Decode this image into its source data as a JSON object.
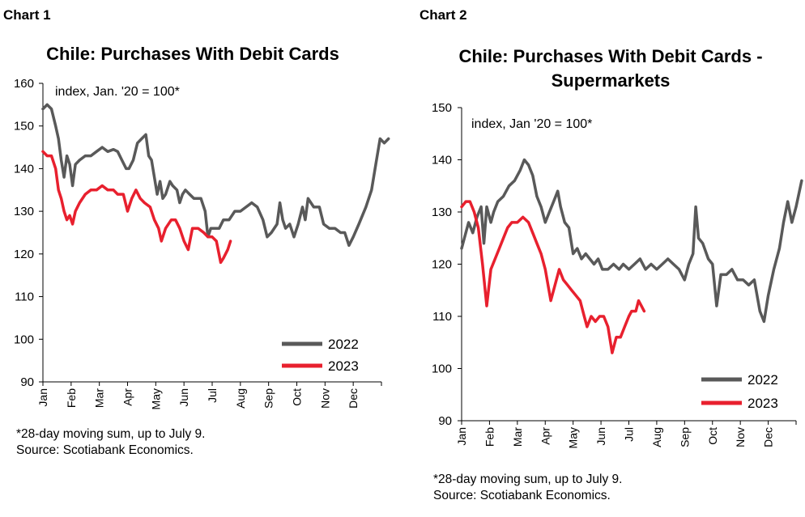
{
  "chart_data": [
    {
      "type": "line",
      "label": "Chart 1",
      "title": "Chile: Purchases With Debit Cards",
      "title_lines": [
        "Chile: Purchases With Debit Cards"
      ],
      "annotation": "index,  Jan. '20 = 100*",
      "ylim": [
        90,
        160
      ],
      "yticks": [
        90,
        100,
        110,
        120,
        130,
        140,
        150,
        160
      ],
      "xlim": [
        0,
        12
      ],
      "xticks": [
        "Jan",
        "Feb",
        "Mar",
        "Apr",
        "May",
        "Jun",
        "Jul",
        "Aug",
        "Sep",
        "Oct",
        "Nov",
        "Dec"
      ],
      "legend": "bottom-right",
      "footnote": [
        "*28-day moving sum, up to July 9.",
        "Source: Scotiabank Economics."
      ],
      "series": [
        {
          "name": "2022",
          "color": "#595959",
          "points": [
            [
              0,
              154
            ],
            [
              0.15,
              155
            ],
            [
              0.3,
              154
            ],
            [
              0.45,
              150
            ],
            [
              0.55,
              147
            ],
            [
              0.65,
              142
            ],
            [
              0.75,
              138
            ],
            [
              0.85,
              143
            ],
            [
              0.95,
              141
            ],
            [
              1.05,
              136
            ],
            [
              1.15,
              141
            ],
            [
              1.3,
              142
            ],
            [
              1.5,
              143
            ],
            [
              1.7,
              143
            ],
            [
              1.9,
              144
            ],
            [
              2.1,
              145
            ],
            [
              2.3,
              144
            ],
            [
              2.5,
              144.5
            ],
            [
              2.65,
              144
            ],
            [
              2.8,
              142
            ],
            [
              2.95,
              140
            ],
            [
              3.05,
              140
            ],
            [
              3.2,
              142
            ],
            [
              3.35,
              146
            ],
            [
              3.5,
              147
            ],
            [
              3.65,
              148
            ],
            [
              3.75,
              143
            ],
            [
              3.85,
              142
            ],
            [
              3.95,
              138
            ],
            [
              4.05,
              134
            ],
            [
              4.15,
              137
            ],
            [
              4.25,
              133
            ],
            [
              4.35,
              134
            ],
            [
              4.5,
              137
            ],
            [
              4.6,
              136
            ],
            [
              4.75,
              135
            ],
            [
              4.85,
              132
            ],
            [
              4.95,
              134
            ],
            [
              5.05,
              135
            ],
            [
              5.2,
              134
            ],
            [
              5.35,
              133
            ],
            [
              5.5,
              133
            ],
            [
              5.6,
              133
            ],
            [
              5.75,
              130
            ],
            [
              5.85,
              124
            ],
            [
              5.95,
              126
            ],
            [
              6.1,
              126
            ],
            [
              6.25,
              126
            ],
            [
              6.4,
              128
            ],
            [
              6.6,
              128
            ],
            [
              6.8,
              130
            ],
            [
              7.0,
              130
            ],
            [
              7.2,
              131
            ],
            [
              7.4,
              132
            ],
            [
              7.6,
              131
            ],
            [
              7.8,
              128
            ],
            [
              7.95,
              124
            ],
            [
              8.1,
              125
            ],
            [
              8.3,
              127
            ],
            [
              8.4,
              132
            ],
            [
              8.5,
              128
            ],
            [
              8.6,
              126
            ],
            [
              8.75,
              127
            ],
            [
              8.9,
              124
            ],
            [
              9.05,
              127
            ],
            [
              9.2,
              131
            ],
            [
              9.3,
              128
            ],
            [
              9.4,
              133
            ],
            [
              9.6,
              131
            ],
            [
              9.8,
              131
            ],
            [
              9.95,
              127
            ],
            [
              10.15,
              126
            ],
            [
              10.35,
              126
            ],
            [
              10.55,
              125
            ],
            [
              10.7,
              125
            ],
            [
              10.85,
              122
            ],
            [
              11.0,
              124
            ],
            [
              11.2,
              127
            ],
            [
              11.45,
              131
            ],
            [
              11.65,
              135
            ],
            [
              11.8,
              141
            ],
            [
              11.95,
              147
            ],
            [
              12.1,
              146
            ],
            [
              12.25,
              147
            ]
          ]
        },
        {
          "name": "2023",
          "color": "#e8202e",
          "points": [
            [
              0,
              144
            ],
            [
              0.15,
              143
            ],
            [
              0.3,
              143
            ],
            [
              0.45,
              140
            ],
            [
              0.55,
              135
            ],
            [
              0.65,
              133
            ],
            [
              0.75,
              130
            ],
            [
              0.85,
              128
            ],
            [
              0.95,
              129
            ],
            [
              1.05,
              127
            ],
            [
              1.15,
              130
            ],
            [
              1.3,
              132
            ],
            [
              1.5,
              134
            ],
            [
              1.7,
              135
            ],
            [
              1.9,
              135
            ],
            [
              2.1,
              136
            ],
            [
              2.3,
              135
            ],
            [
              2.5,
              135
            ],
            [
              2.65,
              134
            ],
            [
              2.85,
              134
            ],
            [
              3.0,
              130
            ],
            [
              3.15,
              133
            ],
            [
              3.3,
              135
            ],
            [
              3.45,
              133
            ],
            [
              3.6,
              132
            ],
            [
              3.8,
              131
            ],
            [
              3.95,
              128
            ],
            [
              4.1,
              126
            ],
            [
              4.2,
              123
            ],
            [
              4.35,
              126
            ],
            [
              4.55,
              128
            ],
            [
              4.7,
              128
            ],
            [
              4.85,
              126
            ],
            [
              5.0,
              123
            ],
            [
              5.15,
              121
            ],
            [
              5.3,
              126
            ],
            [
              5.5,
              126
            ],
            [
              5.7,
              125
            ],
            [
              5.85,
              124
            ],
            [
              6.0,
              124
            ],
            [
              6.15,
              123
            ],
            [
              6.3,
              118
            ],
            [
              6.4,
              119
            ],
            [
              6.55,
              121
            ],
            [
              6.65,
              123
            ]
          ]
        }
      ]
    },
    {
      "type": "line",
      "label": "Chart 2",
      "title": "Chile: Purchases With Debit Cards - Supermarkets",
      "title_lines": [
        "Chile: Purchases With Debit Cards -",
        "Supermarkets"
      ],
      "annotation": "index, Jan '20 = 100*",
      "ylim": [
        90,
        150
      ],
      "yticks": [
        90,
        100,
        110,
        120,
        130,
        140,
        150
      ],
      "xlim": [
        0,
        12
      ],
      "xticks": [
        "Jan",
        "Feb",
        "Mar",
        "Apr",
        "May",
        "Jun",
        "Jul",
        "Aug",
        "Sep",
        "Oct",
        "Nov",
        "Dec"
      ],
      "legend": "bottom-right",
      "footnote": [
        "*28-day moving sum, up to July 9.",
        "Source: Scotiabank Economics."
      ],
      "series": [
        {
          "name": "2022",
          "color": "#595959",
          "points": [
            [
              0,
              123
            ],
            [
              0.1,
              125
            ],
            [
              0.25,
              128
            ],
            [
              0.4,
              126
            ],
            [
              0.55,
              129
            ],
            [
              0.7,
              131
            ],
            [
              0.8,
              124
            ],
            [
              0.9,
              131
            ],
            [
              1.05,
              128
            ],
            [
              1.15,
              130
            ],
            [
              1.3,
              132
            ],
            [
              1.5,
              133
            ],
            [
              1.7,
              135
            ],
            [
              1.9,
              136
            ],
            [
              2.1,
              138
            ],
            [
              2.25,
              140
            ],
            [
              2.4,
              139
            ],
            [
              2.55,
              137
            ],
            [
              2.7,
              133
            ],
            [
              2.85,
              131
            ],
            [
              3.0,
              128
            ],
            [
              3.15,
              130
            ],
            [
              3.3,
              132
            ],
            [
              3.45,
              134
            ],
            [
              3.55,
              131
            ],
            [
              3.7,
              128
            ],
            [
              3.85,
              127
            ],
            [
              4.0,
              122
            ],
            [
              4.15,
              123
            ],
            [
              4.3,
              121
            ],
            [
              4.45,
              122
            ],
            [
              4.6,
              121
            ],
            [
              4.75,
              120
            ],
            [
              4.9,
              121
            ],
            [
              5.05,
              119
            ],
            [
              5.25,
              119
            ],
            [
              5.45,
              120
            ],
            [
              5.65,
              119
            ],
            [
              5.8,
              120
            ],
            [
              6.0,
              119
            ],
            [
              6.2,
              120
            ],
            [
              6.4,
              121
            ],
            [
              6.6,
              119
            ],
            [
              6.8,
              120
            ],
            [
              7.0,
              119
            ],
            [
              7.2,
              120
            ],
            [
              7.4,
              121
            ],
            [
              7.6,
              120
            ],
            [
              7.8,
              119
            ],
            [
              8.0,
              117
            ],
            [
              8.15,
              120
            ],
            [
              8.3,
              122
            ],
            [
              8.4,
              131
            ],
            [
              8.5,
              125
            ],
            [
              8.65,
              124
            ],
            [
              8.85,
              121
            ],
            [
              9.0,
              120
            ],
            [
              9.15,
              112
            ],
            [
              9.3,
              118
            ],
            [
              9.5,
              118
            ],
            [
              9.7,
              119
            ],
            [
              9.9,
              117
            ],
            [
              10.1,
              117
            ],
            [
              10.3,
              116
            ],
            [
              10.5,
              117
            ],
            [
              10.7,
              111
            ],
            [
              10.85,
              109
            ],
            [
              11.0,
              114
            ],
            [
              11.2,
              119
            ],
            [
              11.4,
              123
            ],
            [
              11.55,
              128
            ],
            [
              11.7,
              132
            ],
            [
              11.85,
              128
            ],
            [
              12.0,
              131
            ],
            [
              12.2,
              136
            ]
          ]
        },
        {
          "name": "2023",
          "color": "#e8202e",
          "points": [
            [
              0,
              131
            ],
            [
              0.15,
              132
            ],
            [
              0.3,
              132
            ],
            [
              0.45,
              130
            ],
            [
              0.6,
              127
            ],
            [
              0.75,
              120
            ],
            [
              0.9,
              112
            ],
            [
              1.05,
              119
            ],
            [
              1.2,
              121
            ],
            [
              1.35,
              123
            ],
            [
              1.5,
              125
            ],
            [
              1.65,
              127
            ],
            [
              1.8,
              128
            ],
            [
              2.0,
              128
            ],
            [
              2.2,
              129
            ],
            [
              2.4,
              128
            ],
            [
              2.55,
              126
            ],
            [
              2.7,
              124
            ],
            [
              2.85,
              122
            ],
            [
              3.0,
              119
            ],
            [
              3.1,
              116
            ],
            [
              3.2,
              113
            ],
            [
              3.35,
              116
            ],
            [
              3.5,
              119
            ],
            [
              3.65,
              117
            ],
            [
              3.8,
              116
            ],
            [
              3.95,
              115
            ],
            [
              4.1,
              114
            ],
            [
              4.25,
              113
            ],
            [
              4.4,
              110
            ],
            [
              4.5,
              108
            ],
            [
              4.65,
              110
            ],
            [
              4.8,
              109
            ],
            [
              4.95,
              110
            ],
            [
              5.1,
              110
            ],
            [
              5.25,
              108
            ],
            [
              5.4,
              103
            ],
            [
              5.55,
              106
            ],
            [
              5.7,
              106
            ],
            [
              5.85,
              108
            ],
            [
              6.0,
              110
            ],
            [
              6.1,
              111
            ],
            [
              6.25,
              111
            ],
            [
              6.35,
              113
            ],
            [
              6.45,
              112
            ],
            [
              6.55,
              111
            ]
          ]
        }
      ]
    }
  ]
}
